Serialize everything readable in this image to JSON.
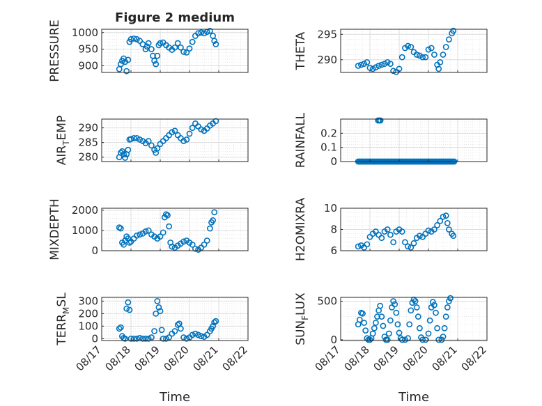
{
  "figure": {
    "title": "Figure 2 medium",
    "xlabel": "Time"
  },
  "chart_data": [
    {
      "type": "scatter",
      "ylabel": "PRESSURE",
      "xlim": [
        0,
        5
      ],
      "ylim": [
        880,
        1010
      ],
      "yticks": [
        900,
        950,
        1000
      ],
      "xticks": [
        "08/17",
        "08/18",
        "08/19",
        "08/20",
        "08/21",
        "08/22"
      ],
      "grid": true,
      "points": [
        [
          0.6,
          890
        ],
        [
          0.65,
          905
        ],
        [
          0.7,
          915
        ],
        [
          0.75,
          922
        ],
        [
          0.8,
          912
        ],
        [
          0.85,
          884
        ],
        [
          0.9,
          918
        ],
        [
          0.95,
          972
        ],
        [
          1.0,
          980
        ],
        [
          1.1,
          982
        ],
        [
          1.2,
          980
        ],
        [
          1.3,
          975
        ],
        [
          1.4,
          965
        ],
        [
          1.5,
          950
        ],
        [
          1.55,
          958
        ],
        [
          1.6,
          968
        ],
        [
          1.7,
          950
        ],
        [
          1.75,
          930
        ],
        [
          1.8,
          915
        ],
        [
          1.85,
          905
        ],
        [
          1.9,
          930
        ],
        [
          1.95,
          962
        ],
        [
          2.0,
          968
        ],
        [
          2.1,
          970
        ],
        [
          2.2,
          962
        ],
        [
          2.3,
          955
        ],
        [
          2.4,
          948
        ],
        [
          2.5,
          955
        ],
        [
          2.6,
          968
        ],
        [
          2.7,
          955
        ],
        [
          2.8,
          942
        ],
        [
          2.9,
          940
        ],
        [
          3.0,
          952
        ],
        [
          3.1,
          972
        ],
        [
          3.2,
          990
        ],
        [
          3.3,
          998
        ],
        [
          3.4,
          1000
        ],
        [
          3.5,
          998
        ],
        [
          3.6,
          1002
        ],
        [
          3.7,
          1005
        ],
        [
          3.8,
          990
        ],
        [
          3.85,
          975
        ],
        [
          3.9,
          965
        ]
      ]
    },
    {
      "type": "scatter",
      "ylabel": "THETA",
      "xlim": [
        0,
        5
      ],
      "ylim": [
        287.5,
        296
      ],
      "yticks": [
        290,
        295
      ],
      "xticks": [
        "08/17",
        "08/18",
        "08/19",
        "08/20",
        "08/21",
        "08/22"
      ],
      "grid": true,
      "points": [
        [
          0.6,
          288.8
        ],
        [
          0.7,
          289
        ],
        [
          0.8,
          289.2
        ],
        [
          0.9,
          289.5
        ],
        [
          1.0,
          288.4
        ],
        [
          1.1,
          288.2
        ],
        [
          1.2,
          288.5
        ],
        [
          1.3,
          288.8
        ],
        [
          1.4,
          289
        ],
        [
          1.5,
          289.2
        ],
        [
          1.6,
          289.5
        ],
        [
          1.7,
          289.2
        ],
        [
          1.8,
          287.8
        ],
        [
          1.9,
          287.6
        ],
        [
          2.0,
          288.2
        ],
        [
          2.1,
          290.5
        ],
        [
          2.2,
          292.3
        ],
        [
          2.3,
          292.7
        ],
        [
          2.4,
          292.5
        ],
        [
          2.5,
          291.5
        ],
        [
          2.6,
          291
        ],
        [
          2.7,
          290.8
        ],
        [
          2.8,
          290.5
        ],
        [
          2.9,
          290.5
        ],
        [
          3.0,
          292
        ],
        [
          3.1,
          292.3
        ],
        [
          3.2,
          291
        ],
        [
          3.3,
          289
        ],
        [
          3.35,
          288.2
        ],
        [
          3.4,
          289.5
        ],
        [
          3.5,
          291
        ],
        [
          3.6,
          292.5
        ],
        [
          3.7,
          294
        ],
        [
          3.8,
          295.2
        ],
        [
          3.85,
          295.7
        ]
      ]
    },
    {
      "type": "scatter",
      "ylabel": "AIR_TEMP",
      "xlim": [
        0,
        5
      ],
      "ylim": [
        278.5,
        293
      ],
      "yticks": [
        280,
        285,
        290
      ],
      "xticks": [
        "08/17",
        "08/18",
        "08/19",
        "08/20",
        "08/21",
        "08/22"
      ],
      "grid": true,
      "points": [
        [
          0.6,
          280
        ],
        [
          0.65,
          281.5
        ],
        [
          0.7,
          282
        ],
        [
          0.75,
          281
        ],
        [
          0.8,
          279.8
        ],
        [
          0.85,
          281
        ],
        [
          0.9,
          282.5
        ],
        [
          0.95,
          286
        ],
        [
          1.0,
          286.2
        ],
        [
          1.1,
          286.5
        ],
        [
          1.2,
          286.5
        ],
        [
          1.3,
          286
        ],
        [
          1.4,
          285.5
        ],
        [
          1.5,
          284.8
        ],
        [
          1.6,
          285.5
        ],
        [
          1.7,
          284
        ],
        [
          1.8,
          282.5
        ],
        [
          1.85,
          281.5
        ],
        [
          1.9,
          283
        ],
        [
          2.0,
          284.5
        ],
        [
          2.1,
          285.5
        ],
        [
          2.2,
          286.5
        ],
        [
          2.3,
          287.5
        ],
        [
          2.4,
          288.5
        ],
        [
          2.5,
          289
        ],
        [
          2.6,
          287.5
        ],
        [
          2.7,
          286.5
        ],
        [
          2.8,
          285.5
        ],
        [
          2.9,
          286
        ],
        [
          3.0,
          288
        ],
        [
          3.1,
          290
        ],
        [
          3.2,
          291.5
        ],
        [
          3.3,
          290.5
        ],
        [
          3.4,
          289.5
        ],
        [
          3.5,
          289
        ],
        [
          3.6,
          289.8
        ],
        [
          3.7,
          290.8
        ],
        [
          3.8,
          291.5
        ],
        [
          3.9,
          292.3
        ]
      ]
    },
    {
      "type": "scatter",
      "ylabel": "RAINFALL",
      "xlim": [
        0,
        5
      ],
      "ylim": [
        0,
        0.3
      ],
      "yticks": [
        0,
        0.1,
        0.2
      ],
      "xticks": [
        "08/17",
        "08/18",
        "08/19",
        "08/20",
        "08/21",
        "08/22"
      ],
      "grid": true,
      "points": [
        [
          1.28,
          0.29
        ],
        [
          1.32,
          0.29
        ],
        [
          1.36,
          0.29
        ]
      ],
      "baseline": {
        "y": 0,
        "x_from": 0.6,
        "x_to": 3.9,
        "step": 0.04
      }
    },
    {
      "type": "scatter",
      "ylabel": "MIXDEPTH",
      "xlim": [
        0,
        5
      ],
      "ylim": [
        0,
        2100
      ],
      "yticks": [
        0,
        1000,
        2000
      ],
      "xticks": [
        "08/17",
        "08/18",
        "08/19",
        "08/20",
        "08/21",
        "08/22"
      ],
      "grid": true,
      "points": [
        [
          0.6,
          1150
        ],
        [
          0.65,
          1100
        ],
        [
          0.7,
          400
        ],
        [
          0.75,
          300
        ],
        [
          0.8,
          500
        ],
        [
          0.85,
          700
        ],
        [
          0.9,
          600
        ],
        [
          0.95,
          400
        ],
        [
          1.0,
          450
        ],
        [
          1.1,
          600
        ],
        [
          1.2,
          750
        ],
        [
          1.3,
          800
        ],
        [
          1.4,
          850
        ],
        [
          1.5,
          950
        ],
        [
          1.6,
          1000
        ],
        [
          1.7,
          800
        ],
        [
          1.8,
          700
        ],
        [
          1.9,
          600
        ],
        [
          2.0,
          700
        ],
        [
          2.1,
          900
        ],
        [
          2.15,
          1650
        ],
        [
          2.2,
          1800
        ],
        [
          2.25,
          1750
        ],
        [
          2.3,
          1200
        ],
        [
          2.35,
          400
        ],
        [
          2.4,
          200
        ],
        [
          2.5,
          150
        ],
        [
          2.6,
          250
        ],
        [
          2.7,
          350
        ],
        [
          2.8,
          450
        ],
        [
          2.9,
          500
        ],
        [
          3.0,
          400
        ],
        [
          3.1,
          300
        ],
        [
          3.2,
          100
        ],
        [
          3.3,
          50
        ],
        [
          3.4,
          150
        ],
        [
          3.5,
          300
        ],
        [
          3.6,
          500
        ],
        [
          3.7,
          1100
        ],
        [
          3.75,
          1400
        ],
        [
          3.8,
          1500
        ],
        [
          3.85,
          1900
        ]
      ]
    },
    {
      "type": "scatter",
      "ylabel": "H2OMIXRA",
      "xlim": [
        0,
        5
      ],
      "ylim": [
        6,
        10
      ],
      "yticks": [
        6,
        8,
        10
      ],
      "xticks": [
        "08/17",
        "08/18",
        "08/19",
        "08/20",
        "08/21",
        "08/22"
      ],
      "grid": true,
      "points": [
        [
          0.6,
          6.4
        ],
        [
          0.7,
          6.5
        ],
        [
          0.8,
          6.3
        ],
        [
          0.9,
          6.6
        ],
        [
          1.0,
          7.3
        ],
        [
          1.1,
          7.6
        ],
        [
          1.2,
          7.8
        ],
        [
          1.3,
          7.5
        ],
        [
          1.4,
          7.2
        ],
        [
          1.5,
          7.8
        ],
        [
          1.6,
          8
        ],
        [
          1.7,
          7.5
        ],
        [
          1.8,
          6.8
        ],
        [
          1.9,
          7.8
        ],
        [
          2.0,
          8
        ],
        [
          2.1,
          7.8
        ],
        [
          2.2,
          6.8
        ],
        [
          2.3,
          6.4
        ],
        [
          2.4,
          6.3
        ],
        [
          2.5,
          6.7
        ],
        [
          2.6,
          7.2
        ],
        [
          2.7,
          7.4
        ],
        [
          2.8,
          7.3
        ],
        [
          2.9,
          7.6
        ],
        [
          3.0,
          7.9
        ],
        [
          3.1,
          7.8
        ],
        [
          3.2,
          8
        ],
        [
          3.3,
          8.4
        ],
        [
          3.4,
          8.8
        ],
        [
          3.5,
          9.2
        ],
        [
          3.6,
          9.3
        ],
        [
          3.65,
          8.6
        ],
        [
          3.7,
          8
        ],
        [
          3.8,
          7.6
        ],
        [
          3.85,
          7.4
        ]
      ]
    },
    {
      "type": "scatter",
      "ylabel": "TERR_MSL",
      "xlim": [
        0,
        5
      ],
      "ylim": [
        -15,
        330
      ],
      "yticks": [
        0,
        100,
        200,
        300
      ],
      "xticks": [
        "08/17",
        "08/18",
        "08/19",
        "08/20",
        "08/21",
        "08/22"
      ],
      "grid": true,
      "points": [
        [
          0.6,
          80
        ],
        [
          0.65,
          90
        ],
        [
          0.7,
          20
        ],
        [
          0.75,
          5
        ],
        [
          0.8,
          0
        ],
        [
          0.85,
          240
        ],
        [
          0.9,
          290
        ],
        [
          0.95,
          230
        ],
        [
          1.0,
          0
        ],
        [
          1.1,
          0
        ],
        [
          1.2,
          0
        ],
        [
          1.3,
          5
        ],
        [
          1.4,
          0
        ],
        [
          1.5,
          0
        ],
        [
          1.6,
          0
        ],
        [
          1.7,
          10
        ],
        [
          1.8,
          60
        ],
        [
          1.85,
          200
        ],
        [
          1.9,
          300
        ],
        [
          1.95,
          250
        ],
        [
          2.0,
          220
        ],
        [
          2.05,
          70
        ],
        [
          2.1,
          0
        ],
        [
          2.2,
          0
        ],
        [
          2.3,
          10
        ],
        [
          2.4,
          40
        ],
        [
          2.5,
          60
        ],
        [
          2.6,
          110
        ],
        [
          2.65,
          120
        ],
        [
          2.7,
          80
        ],
        [
          2.8,
          10
        ],
        [
          2.9,
          0
        ],
        [
          3.0,
          10
        ],
        [
          3.1,
          30
        ],
        [
          3.2,
          40
        ],
        [
          3.3,
          30
        ],
        [
          3.4,
          20
        ],
        [
          3.5,
          15
        ],
        [
          3.6,
          30
        ],
        [
          3.7,
          60
        ],
        [
          3.75,
          80
        ],
        [
          3.8,
          100
        ],
        [
          3.85,
          130
        ],
        [
          3.9,
          140
        ]
      ]
    },
    {
      "type": "scatter",
      "ylabel": "SUN_FLUX",
      "xlim": [
        0,
        5
      ],
      "ylim": [
        -10,
        550
      ],
      "yticks": [
        0,
        500
      ],
      "xticks": [
        "08/17",
        "08/18",
        "08/19",
        "08/20",
        "08/21",
        "08/22"
      ],
      "grid": true,
      "points": [
        [
          0.6,
          200
        ],
        [
          0.65,
          260
        ],
        [
          0.7,
          350
        ],
        [
          0.75,
          340
        ],
        [
          0.8,
          220
        ],
        [
          0.85,
          120
        ],
        [
          0.9,
          20
        ],
        [
          0.95,
          0
        ],
        [
          1.0,
          0
        ],
        [
          1.05,
          20
        ],
        [
          1.1,
          80
        ],
        [
          1.15,
          150
        ],
        [
          1.2,
          220
        ],
        [
          1.25,
          300
        ],
        [
          1.3,
          380
        ],
        [
          1.35,
          440
        ],
        [
          1.4,
          300
        ],
        [
          1.45,
          180
        ],
        [
          1.5,
          40
        ],
        [
          1.55,
          0
        ],
        [
          1.6,
          0
        ],
        [
          1.65,
          80
        ],
        [
          1.7,
          250
        ],
        [
          1.75,
          420
        ],
        [
          1.8,
          500
        ],
        [
          1.85,
          460
        ],
        [
          1.9,
          350
        ],
        [
          1.95,
          200
        ],
        [
          2.0,
          90
        ],
        [
          2.05,
          20
        ],
        [
          2.1,
          0
        ],
        [
          2.2,
          0
        ],
        [
          2.3,
          20
        ],
        [
          2.35,
          200
        ],
        [
          2.4,
          380
        ],
        [
          2.45,
          480
        ],
        [
          2.5,
          520
        ],
        [
          2.55,
          500
        ],
        [
          2.6,
          420
        ],
        [
          2.65,
          300
        ],
        [
          2.7,
          150
        ],
        [
          2.75,
          30
        ],
        [
          2.8,
          0
        ],
        [
          2.9,
          0
        ],
        [
          3.0,
          80
        ],
        [
          3.05,
          250
        ],
        [
          3.1,
          420
        ],
        [
          3.15,
          490
        ],
        [
          3.2,
          450
        ],
        [
          3.25,
          350
        ],
        [
          3.3,
          150
        ],
        [
          3.35,
          0
        ],
        [
          3.45,
          0
        ],
        [
          3.5,
          40
        ],
        [
          3.55,
          150
        ],
        [
          3.6,
          300
        ],
        [
          3.65,
          420
        ],
        [
          3.7,
          500
        ],
        [
          3.75,
          540
        ]
      ]
    }
  ],
  "colors": {
    "marker": "#0072BD",
    "axis": "#262626",
    "grid": "#dcdcdc"
  }
}
